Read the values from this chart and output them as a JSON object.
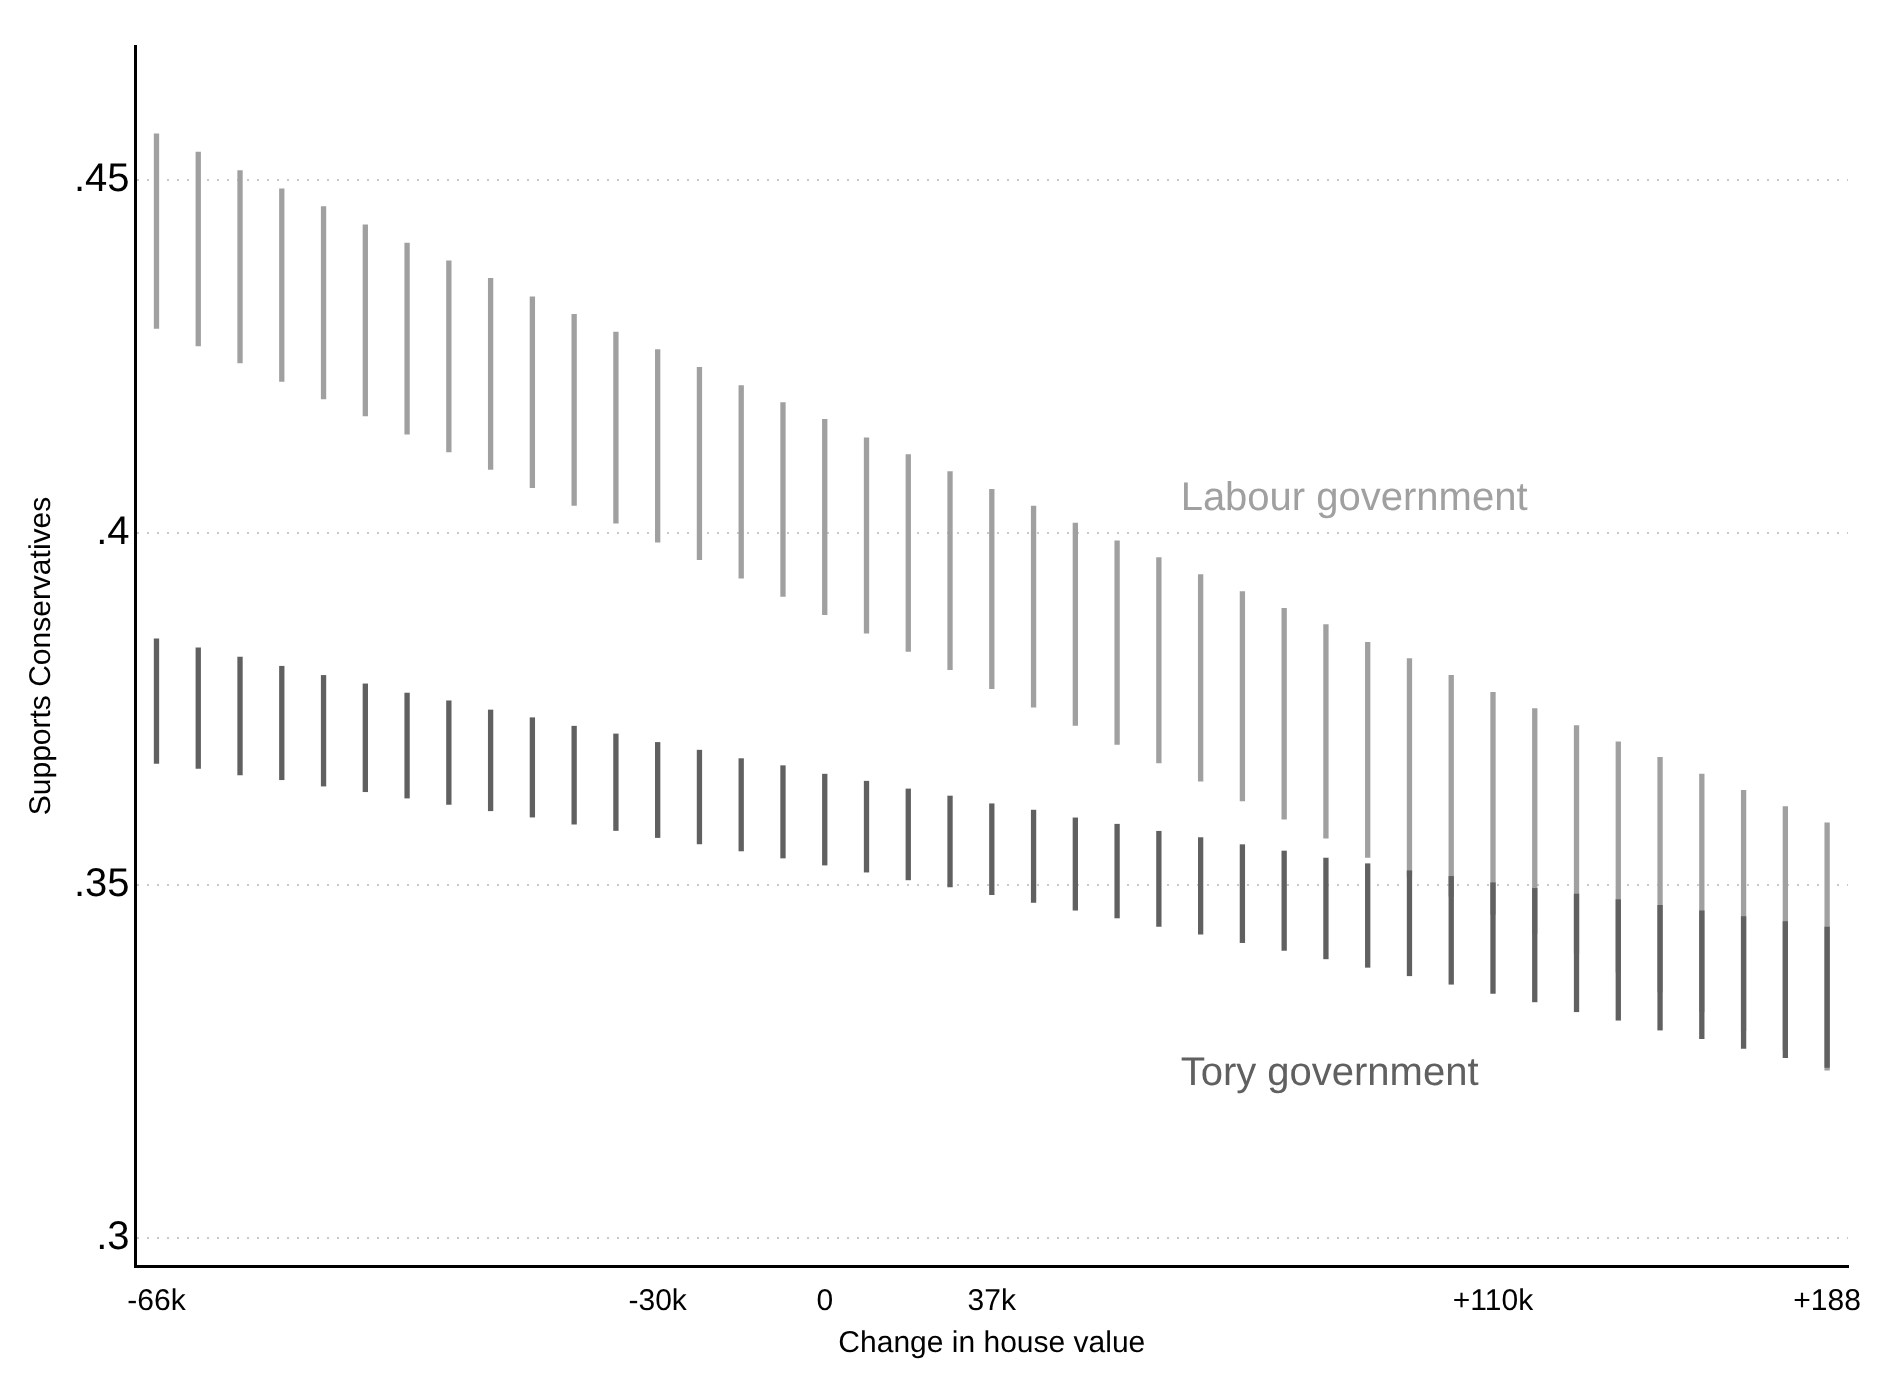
{
  "chart_data": {
    "type": "bar",
    "xlabel": "Change in house value",
    "ylabel": "Supports Conservatives",
    "categories": [
      "-66k",
      null,
      null,
      null,
      null,
      null,
      null,
      null,
      null,
      null,
      null,
      null,
      "-30k",
      null,
      null,
      null,
      "0",
      null,
      null,
      null,
      "37k",
      null,
      null,
      null,
      null,
      null,
      null,
      null,
      null,
      null,
      null,
      null,
      "+110k",
      null,
      null,
      null,
      null,
      null,
      null,
      null,
      "+188"
    ],
    "series": [
      {
        "name": "Tory government",
        "color": "#606060",
        "base": [
          0.3673,
          0.3666,
          0.3657,
          0.365,
          0.3641,
          0.3633,
          0.3624,
          0.3615,
          0.3606,
          0.3597,
          0.3587,
          0.3578,
          0.3568,
          0.3559,
          0.3549,
          0.3539,
          0.3529,
          0.3519,
          0.3508,
          0.3498,
          0.3487,
          0.3476,
          0.3465,
          0.3454,
          0.3442,
          0.3431,
          0.3419,
          0.3408,
          0.3396,
          0.3384,
          0.3372,
          0.336,
          0.3347,
          0.3335,
          0.3321,
          0.3309,
          0.3295,
          0.3283,
          0.3269,
          0.3256,
          0.3242
        ],
        "values": [
          0.0176,
          0.017,
          0.0166,
          0.016,
          0.0156,
          0.0152,
          0.0148,
          0.0146,
          0.0142,
          0.014,
          0.0138,
          0.0136,
          0.0134,
          0.0132,
          0.013,
          0.013,
          0.0128,
          0.0128,
          0.0128,
          0.0128,
          0.0128,
          0.013,
          0.013,
          0.0132,
          0.0134,
          0.0136,
          0.0138,
          0.014,
          0.0142,
          0.0146,
          0.0148,
          0.0152,
          0.0156,
          0.016,
          0.0166,
          0.017,
          0.0176,
          0.018,
          0.0186,
          0.0192,
          0.0198
        ]
      },
      {
        "name": "Labour government",
        "color": "#a0a0a0",
        "base": [
          0.429,
          0.4265,
          0.4241,
          0.4215,
          0.419,
          0.4166,
          0.414,
          0.4115,
          0.409,
          0.4064,
          0.4039,
          0.4014,
          0.3987,
          0.3962,
          0.3936,
          0.391,
          0.3884,
          0.3858,
          0.3832,
          0.3806,
          0.3779,
          0.3753,
          0.3727,
          0.37,
          0.3674,
          0.3648,
          0.362,
          0.3594,
          0.3567,
          0.354,
          0.3513,
          0.3485,
          0.3459,
          0.3432,
          0.3404,
          0.3377,
          0.3349,
          0.3321,
          0.3294,
          0.3267,
          0.3238
        ],
        "values": [
          0.0275,
          0.0274,
          0.0272,
          0.0272,
          0.0272,
          0.027,
          0.027,
          0.027,
          0.027,
          0.027,
          0.027,
          0.027,
          0.0272,
          0.0272,
          0.0272,
          0.0274,
          0.0276,
          0.0276,
          0.0278,
          0.028,
          0.0282,
          0.0284,
          0.0286,
          0.0288,
          0.029,
          0.0292,
          0.0296,
          0.0298,
          0.0302,
          0.0304,
          0.0308,
          0.0312,
          0.0314,
          0.0318,
          0.0322,
          0.0326,
          0.0332,
          0.0336,
          0.034,
          0.0344,
          0.035
        ]
      }
    ],
    "ylim": [
      0.296,
      0.469
    ],
    "yticks": [
      {
        "value": 0.3,
        "label": ".3"
      },
      {
        "value": 0.35,
        "label": ".35"
      },
      {
        "value": 0.4,
        "label": ".4"
      },
      {
        "value": 0.45,
        "label": ".45"
      }
    ],
    "grid": "y",
    "legend": false
  }
}
